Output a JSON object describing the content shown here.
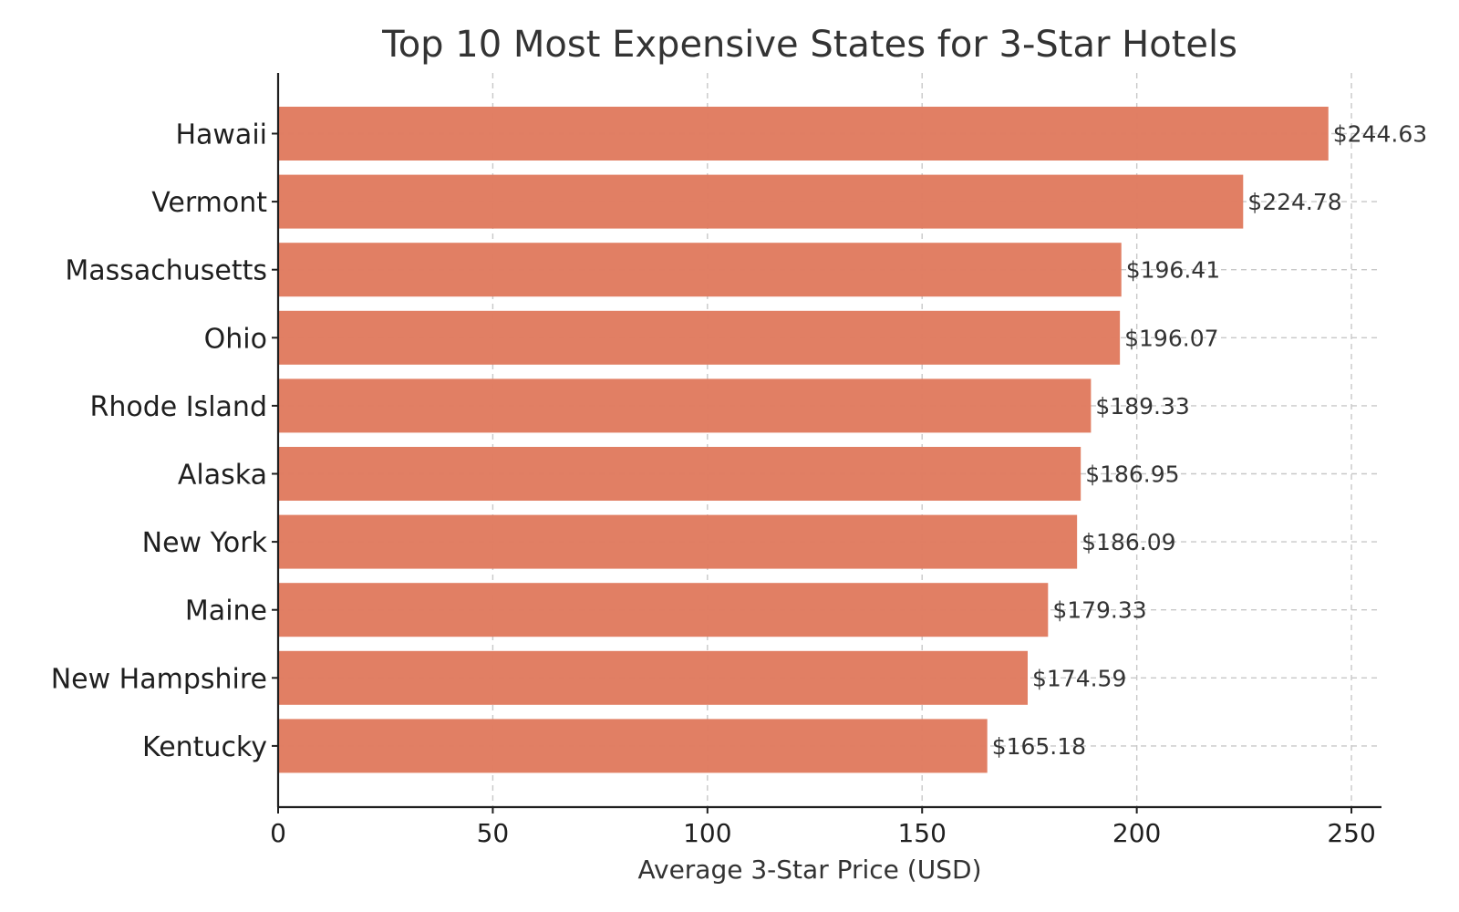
{
  "chart_data": {
    "type": "bar",
    "orientation": "horizontal",
    "title": "Top 10 Most Expensive States for 3-Star Hotels",
    "xlabel": "Average 3-Star Price (USD)",
    "ylabel": "",
    "categories": [
      "Hawaii",
      "Vermont",
      "Massachusetts",
      "Ohio",
      "Rhode Island",
      "Alaska",
      "New York",
      "Maine",
      "New Hampshire",
      "Kentucky"
    ],
    "values": [
      244.63,
      224.78,
      196.41,
      196.07,
      189.33,
      186.95,
      186.09,
      179.33,
      174.59,
      165.18
    ],
    "value_labels": [
      "$244.63",
      "$224.78",
      "$196.41",
      "$196.07",
      "$189.33",
      "$186.95",
      "$186.09",
      "$179.33",
      "$174.59",
      "$165.18"
    ],
    "xlim": [
      0,
      257
    ],
    "xticks": [
      0,
      50,
      100,
      150,
      200,
      250
    ],
    "xtick_labels": [
      "0",
      "50",
      "100",
      "150",
      "200",
      "250"
    ],
    "grid": true,
    "grid_style": "dashed",
    "bar_color": "#e07b5f"
  }
}
